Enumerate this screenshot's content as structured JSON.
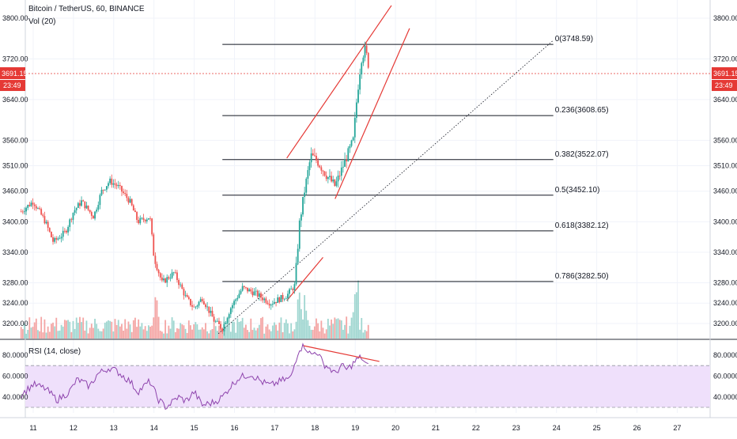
{
  "header": {
    "symbol_line": "Bitcoin / TetherUS, 60, BINANCE",
    "volume_label": "Vol (20)",
    "rsi_label": "RSI (14, close)"
  },
  "price_tag": {
    "value": "3691.15",
    "countdown": "23:49"
  },
  "colors": {
    "up": "#26a69a",
    "down": "#ef5350",
    "vol_up": "#9fd6d0",
    "vol_down": "#f4a5a4",
    "channel": "#e53935",
    "fib": "#131722",
    "rsi": "#8e44ad",
    "rsi_band": "#efe0fb",
    "price_line": "#e53935",
    "axis_text": "#131722"
  },
  "chart_data": [
    {
      "type": "candlestick",
      "title": "Bitcoin / TetherUS, 60, BINANCE",
      "ylim": [
        3175,
        3825
      ],
      "y_ticks": [
        "3800.00",
        "3720.00",
        "3640.00",
        "3560.00",
        "3510.00",
        "3460.00",
        "3400.00",
        "3340.00",
        "3280.00",
        "3240.00",
        "3200.00"
      ],
      "x_ticks": [
        "11",
        "12",
        "13",
        "14",
        "15",
        "16",
        "17",
        "18",
        "19",
        "20",
        "21",
        "22",
        "23",
        "24",
        "25",
        "26",
        "27"
      ],
      "x_range_days": [
        10.6,
        27.6
      ],
      "price_waypoints": [
        [
          10.7,
          3420
        ],
        [
          11.0,
          3440
        ],
        [
          11.3,
          3400
        ],
        [
          11.5,
          3360
        ],
        [
          11.8,
          3380
        ],
        [
          12.0,
          3420
        ],
        [
          12.2,
          3440
        ],
        [
          12.5,
          3410
        ],
        [
          12.7,
          3460
        ],
        [
          12.9,
          3480
        ],
        [
          13.1,
          3470
        ],
        [
          13.4,
          3440
        ],
        [
          13.6,
          3400
        ],
        [
          13.9,
          3410
        ],
        [
          14.0,
          3330
        ],
        [
          14.2,
          3280
        ],
        [
          14.5,
          3300
        ],
        [
          14.8,
          3250
        ],
        [
          15.0,
          3230
        ],
        [
          15.2,
          3250
        ],
        [
          15.5,
          3205
        ],
        [
          15.7,
          3190
        ],
        [
          15.9,
          3230
        ],
        [
          16.2,
          3270
        ],
        [
          16.5,
          3260
        ],
        [
          16.9,
          3240
        ],
        [
          17.3,
          3255
        ],
        [
          17.5,
          3275
        ],
        [
          17.62,
          3400
        ],
        [
          17.75,
          3465
        ],
        [
          17.9,
          3530
        ],
        [
          18.05,
          3520
        ],
        [
          18.3,
          3490
        ],
        [
          18.5,
          3470
        ],
        [
          18.7,
          3510
        ],
        [
          18.85,
          3540
        ],
        [
          18.95,
          3560
        ],
        [
          19.05,
          3650
        ],
        [
          19.15,
          3720
        ],
        [
          19.25,
          3740
        ],
        [
          19.35,
          3700
        ]
      ],
      "fib_levels": [
        {
          "label": "0(3748.59)",
          "price": 3748.59
        },
        {
          "label": "0.236(3608.65)",
          "price": 3608.65
        },
        {
          "label": "0.382(3522.07)",
          "price": 3522.07
        },
        {
          "label": "0.5(3452.10)",
          "price": 3452.1
        },
        {
          "label": "0.618(3382.12)",
          "price": 3382.12
        },
        {
          "label": "0.786(3282.50)",
          "price": 3282.5
        }
      ],
      "fib_x_range": [
        15.7,
        24.0
      ],
      "channel_lines": [
        {
          "from": [
            17.3,
            3525
          ],
          "to": [
            19.9,
            3825
          ]
        },
        {
          "from": [
            18.5,
            3445
          ],
          "to": [
            20.35,
            3780
          ]
        },
        {
          "from": [
            17.3,
            3245
          ],
          "to": [
            18.2,
            3330
          ]
        }
      ],
      "trend_line_dotted": {
        "from": [
          15.6,
          3180
        ],
        "to": [
          23.9,
          3755
        ]
      },
      "last_price_line": 3691.15
    },
    {
      "type": "line",
      "title": "RSI (14, close)",
      "ylim": [
        25,
        92
      ],
      "y_ticks": [
        "80.0000",
        "60.0000",
        "40.0000"
      ],
      "band": [
        30,
        70
      ],
      "rsi_waypoints": [
        [
          10.7,
          42
        ],
        [
          11.0,
          52
        ],
        [
          11.3,
          48
        ],
        [
          11.6,
          37
        ],
        [
          11.9,
          45
        ],
        [
          12.1,
          57
        ],
        [
          12.4,
          50
        ],
        [
          12.6,
          62
        ],
        [
          12.9,
          68
        ],
        [
          13.1,
          64
        ],
        [
          13.4,
          55
        ],
        [
          13.6,
          45
        ],
        [
          13.9,
          55
        ],
        [
          14.1,
          38
        ],
        [
          14.3,
          30
        ],
        [
          14.6,
          40
        ],
        [
          14.8,
          36
        ],
        [
          15.0,
          45
        ],
        [
          15.2,
          32
        ],
        [
          15.5,
          35
        ],
        [
          15.7,
          40
        ],
        [
          15.9,
          50
        ],
        [
          16.1,
          58
        ],
        [
          16.4,
          62
        ],
        [
          16.7,
          54
        ],
        [
          16.9,
          51
        ],
        [
          17.2,
          56
        ],
        [
          17.4,
          58
        ],
        [
          17.6,
          86
        ],
        [
          17.75,
          89
        ],
        [
          17.9,
          80
        ],
        [
          18.05,
          84
        ],
        [
          18.2,
          72
        ],
        [
          18.35,
          68
        ],
        [
          18.5,
          62
        ],
        [
          18.65,
          70
        ],
        [
          18.8,
          66
        ],
        [
          18.95,
          72
        ],
        [
          19.05,
          76
        ],
        [
          19.15,
          78
        ],
        [
          19.25,
          72
        ],
        [
          19.35,
          68
        ]
      ],
      "divergence_line": {
        "from": [
          17.72,
          89
        ],
        "to": [
          19.6,
          74
        ]
      }
    }
  ]
}
